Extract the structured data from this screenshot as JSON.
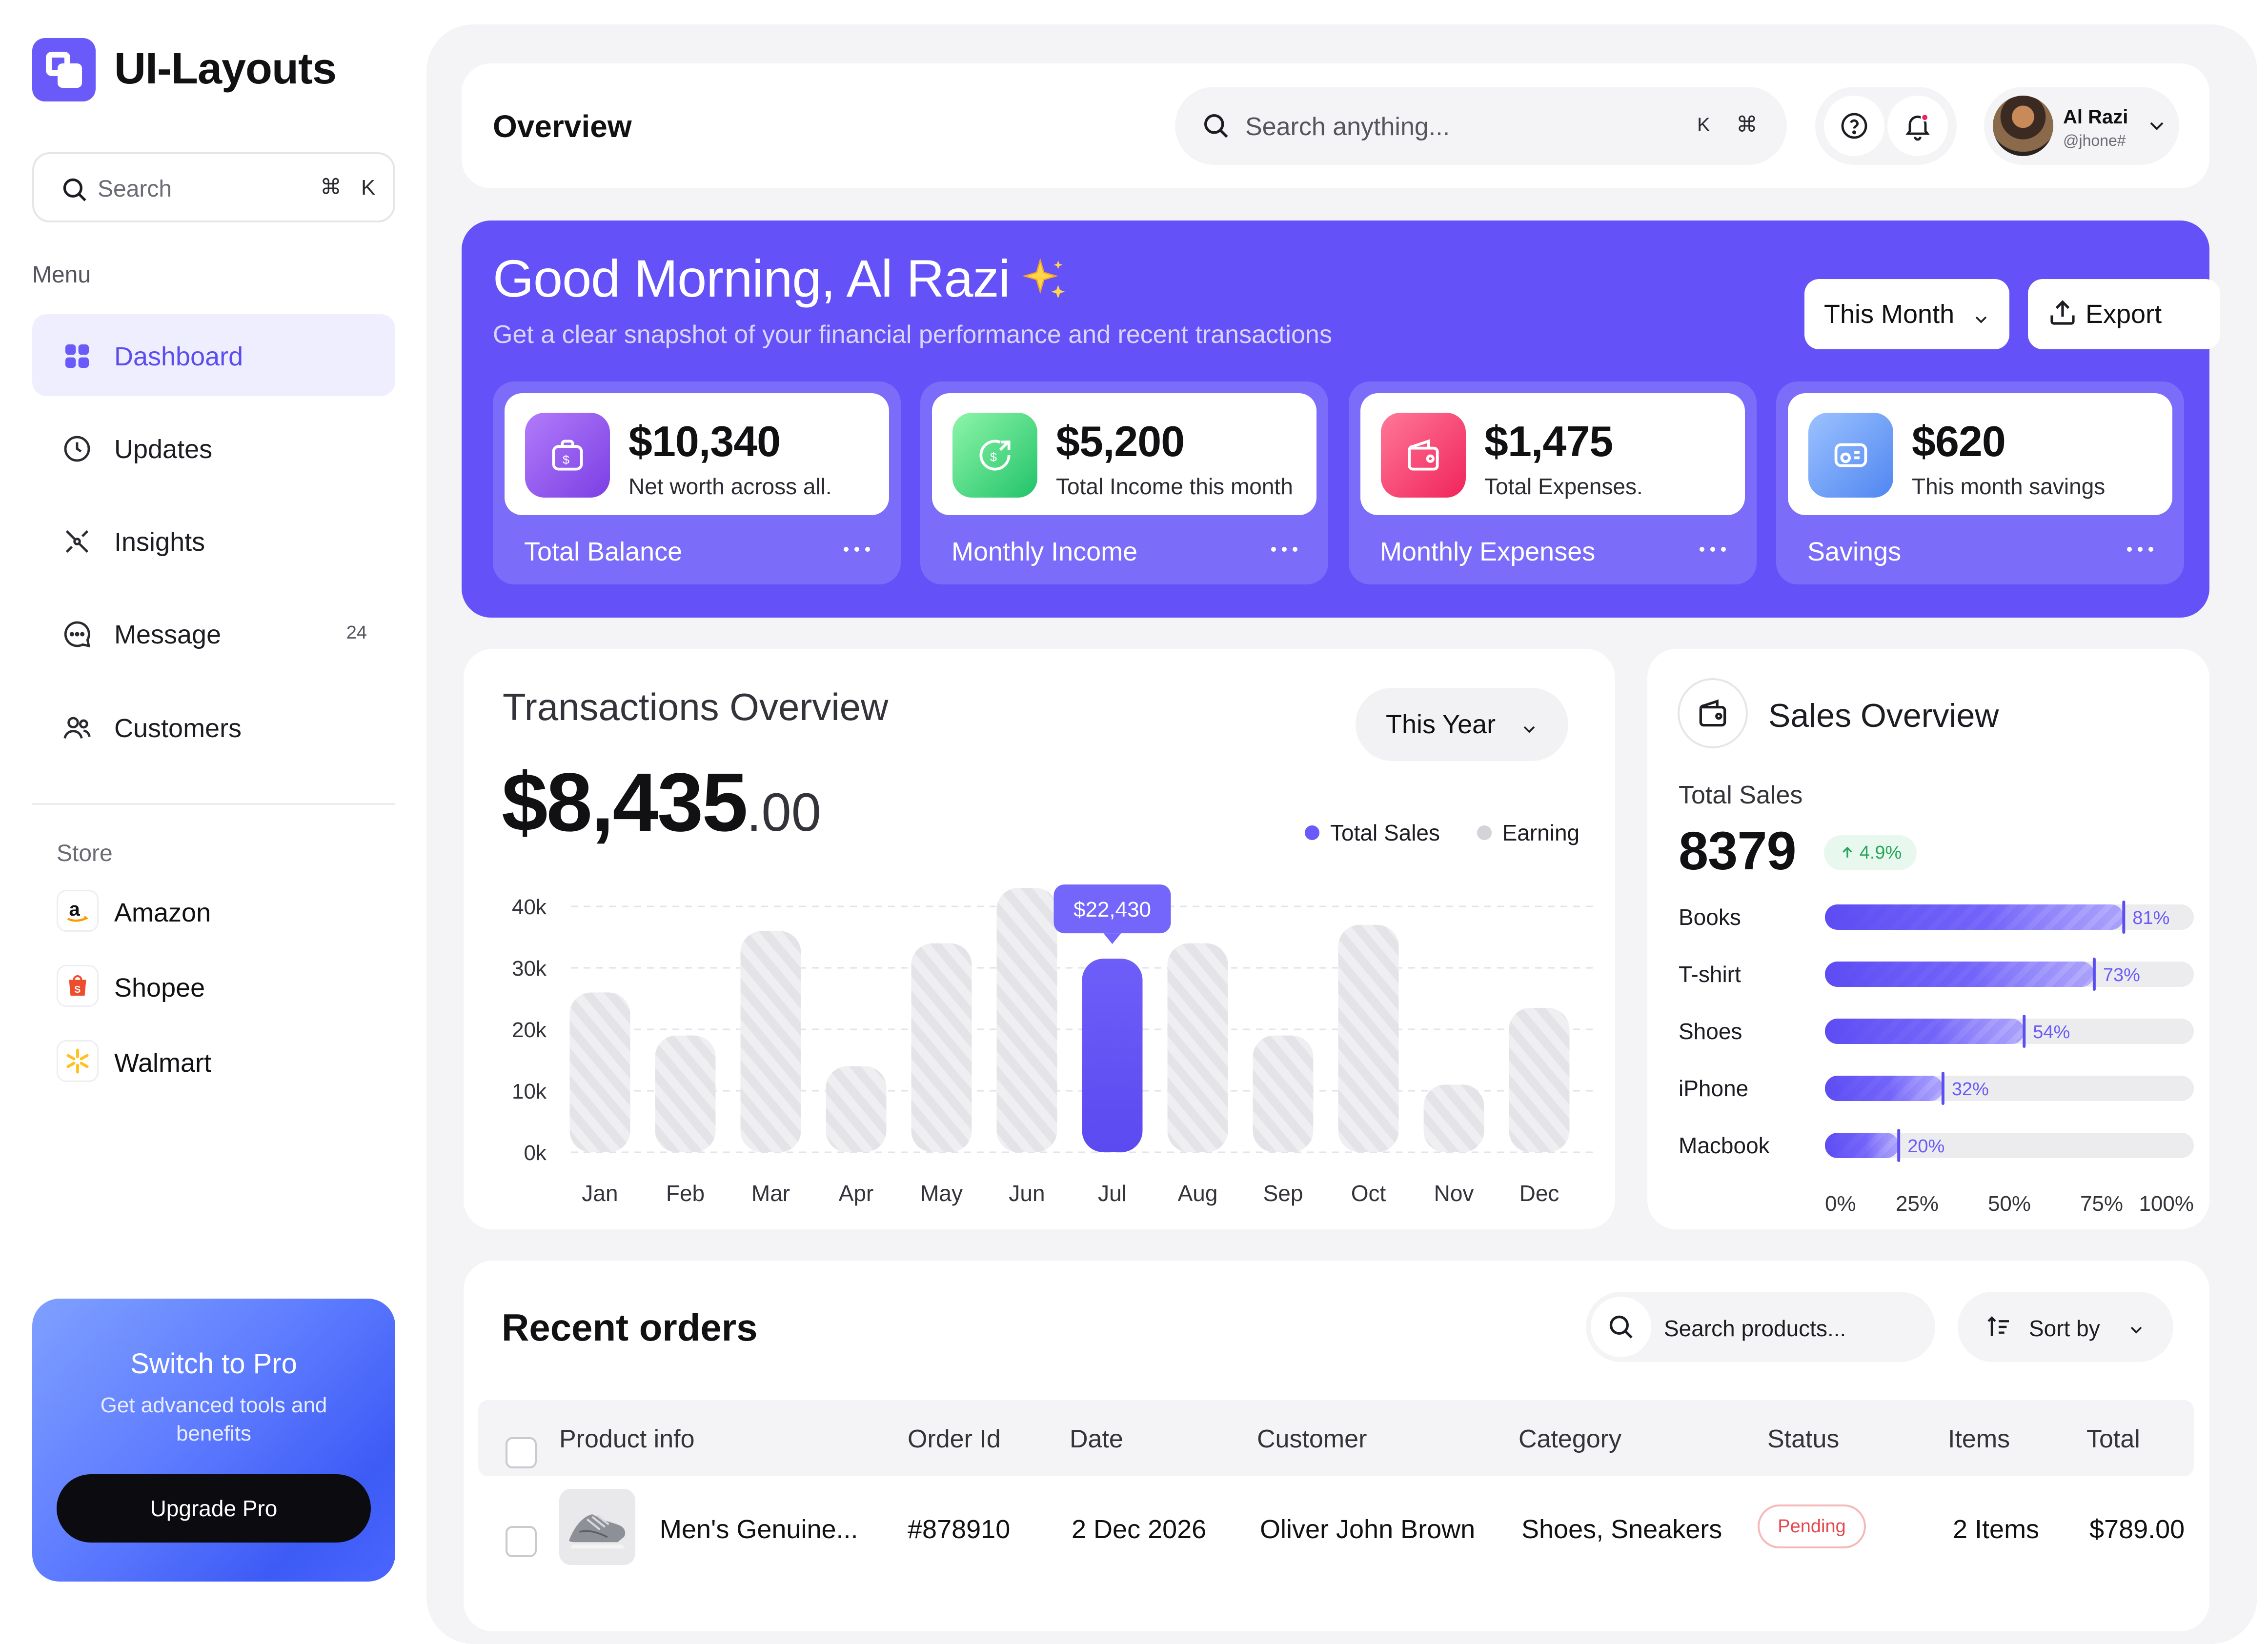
{
  "app": {
    "name": "UI-Layouts"
  },
  "sidebar": {
    "search": {
      "placeholder": "Search",
      "shortcut_cmd": "⌘",
      "shortcut_key": "K"
    },
    "menu_heading": "Menu",
    "items": [
      {
        "label": "Dashboard",
        "icon": "grid-icon",
        "active": true
      },
      {
        "label": "Updates",
        "icon": "clock-icon"
      },
      {
        "label": "Insights",
        "icon": "insights-icon"
      },
      {
        "label": "Message",
        "icon": "message-icon",
        "badge": "24"
      },
      {
        "label": "Customers",
        "icon": "users-icon"
      }
    ],
    "store_heading": "Store",
    "stores": [
      {
        "label": "Amazon",
        "icon": "amazon-icon"
      },
      {
        "label": "Shopee",
        "icon": "shopee-icon"
      },
      {
        "label": "Walmart",
        "icon": "walmart-icon"
      }
    ],
    "promo": {
      "title": "Switch to Pro",
      "text": "Get advanced tools and benefits",
      "button": "Upgrade Pro"
    }
  },
  "header": {
    "title": "Overview",
    "search": {
      "placeholder": "Search anything...",
      "shortcut_key": "K",
      "shortcut_cmd": "⌘"
    },
    "user": {
      "name": "Al Razi",
      "handle": "@jhone#"
    }
  },
  "hero": {
    "greeting": "Good Morning, Al Razi",
    "subtitle": "Get a clear snapshot of your financial performance and recent transactions",
    "period_button": "This Month",
    "export_button": "Export",
    "stats": [
      {
        "value": "$10,340",
        "desc": "Net worth across all.",
        "label": "Total Balance",
        "icon": "wallet-dollar-icon",
        "color_from": "#A56CF6",
        "color_to": "#7B3FE4"
      },
      {
        "value": "$5,200",
        "desc": "Total Income this month",
        "label": "Monthly Income",
        "icon": "income-icon",
        "color_from": "#7CF0A0",
        "color_to": "#22C36A"
      },
      {
        "value": "$1,475",
        "desc": "Total Expenses.",
        "label": "Monthly Expenses",
        "icon": "expense-wallet-icon",
        "color_from": "#FF6B8E",
        "color_to": "#F0245A"
      },
      {
        "value": "$620",
        "desc": "This month savings",
        "label": "Savings",
        "icon": "savings-icon",
        "color_from": "#8FB8FF",
        "color_to": "#4F86F0"
      }
    ]
  },
  "transactions": {
    "title": "Transactions Overview",
    "total_main": "$8,435",
    "total_decimal": ".00",
    "period_button": "This Year",
    "legend": [
      {
        "name": "Total Sales",
        "color": "#6A5AF9"
      },
      {
        "name": "Earning",
        "color": "#D3D3D8"
      }
    ],
    "tooltip": "$22,430"
  },
  "chart_data": {
    "type": "bar",
    "categories": [
      "Jan",
      "Feb",
      "Mar",
      "Apr",
      "May",
      "Jun",
      "Jul",
      "Aug",
      "Sep",
      "Oct",
      "Nov",
      "Dec"
    ],
    "values": [
      26000,
      19000,
      36000,
      14000,
      34000,
      43000,
      31500,
      34000,
      19000,
      37000,
      11000,
      23500
    ],
    "highlight_index": 6,
    "y_ticks": [
      "0k",
      "10k",
      "20k",
      "30k",
      "40k"
    ],
    "ylim": [
      0,
      40000
    ],
    "grid": true
  },
  "sales": {
    "title": "Sales Overview",
    "total_label": "Total Sales",
    "total_value": "8379",
    "change": "4.9%",
    "items": [
      {
        "name": "Books",
        "pct": 81
      },
      {
        "name": "T-shirt",
        "pct": 73
      },
      {
        "name": "Shoes",
        "pct": 54
      },
      {
        "name": "iPhone",
        "pct": 32
      },
      {
        "name": "Macbook",
        "pct": 20
      }
    ],
    "axis": [
      "0%",
      "25%",
      "50%",
      "75%",
      "100%"
    ]
  },
  "orders": {
    "title": "Recent orders",
    "search_placeholder": "Search products...",
    "sort_label": "Sort by",
    "columns": [
      "Product info",
      "Order Id",
      "Date",
      "Customer",
      "Category",
      "Status",
      "Items",
      "Total"
    ],
    "rows": [
      {
        "product": "Men's Genuine...",
        "order_id": "#878910",
        "date": "2 Dec 2026",
        "customer": "Oliver John Brown",
        "category": "Shoes, Sneakers",
        "status": "Pending",
        "items": "2 Items",
        "total": "$789.00"
      }
    ]
  }
}
